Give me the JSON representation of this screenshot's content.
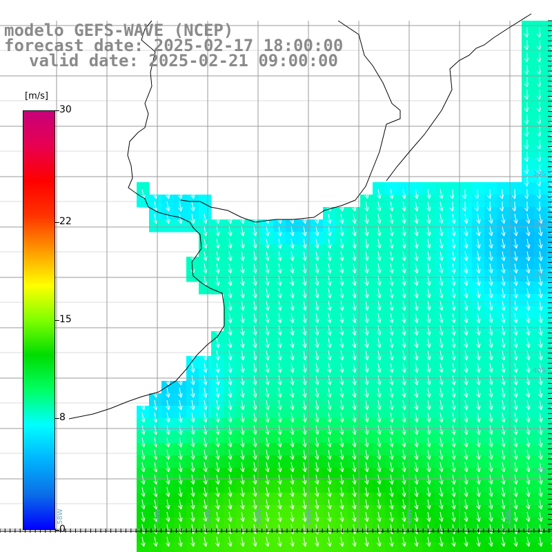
{
  "title": {
    "line1": "modelo GEFS-WAVE (NCEP)",
    "line2": "forecast date: 2025-02-17 18:00:00",
    "line3": "valid date: 2025-02-21 09:00:00"
  },
  "colorbar": {
    "unit": "[m/s]",
    "min": 0,
    "max": 30,
    "ticks": [
      {
        "value": 30,
        "label": "30"
      },
      {
        "value": 22,
        "label": "22"
      },
      {
        "value": 15,
        "label": "15"
      },
      {
        "value": 8,
        "label": "8"
      },
      {
        "value": 0,
        "label": "0"
      }
    ],
    "colors": [
      "#0000ff",
      "#0a6ee8",
      "#00b4ff",
      "#00ffff",
      "#00ff64",
      "#00dd00",
      "#7fff00",
      "#ffff00",
      "#ff9900",
      "#ff3300",
      "#ff0000",
      "#e80050",
      "#c8007a"
    ]
  },
  "map": {
    "variable": "wind speed",
    "lat_labels": [
      "34S",
      "36S",
      "38S",
      "40S",
      "42S"
    ],
    "lon_labels": [
      "58W",
      "56W",
      "54W",
      "52W",
      "50W",
      "48W",
      "46W"
    ],
    "land_color": "#ffffff",
    "grid_color": "#9a9a9a",
    "arrow_color": "#ffffff",
    "wind_direction": "southward"
  }
}
